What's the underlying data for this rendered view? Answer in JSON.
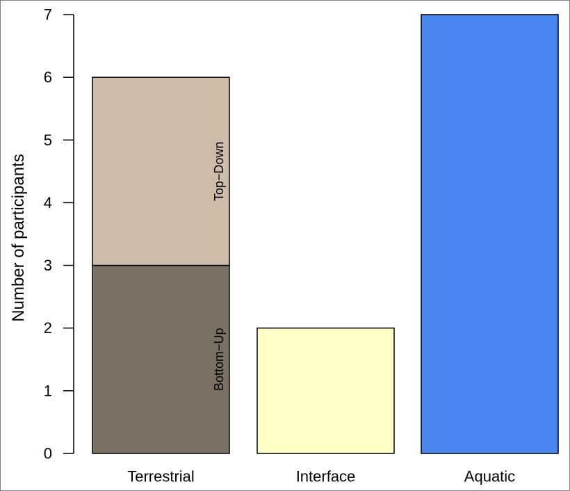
{
  "chart_data": {
    "type": "bar",
    "stacked": true,
    "categories": [
      "Terrestrial",
      "Interface",
      "Aquatic"
    ],
    "series": [
      {
        "name": "Bottom−Up",
        "values": [
          3,
          2,
          7
        ],
        "colors": [
          "#7a7063",
          "#ffffc8",
          "#4a86f0"
        ]
      },
      {
        "name": "Top−Down",
        "values": [
          3,
          0,
          0
        ],
        "colors": [
          "#ccbca9",
          "#ffffc8",
          "#4a86f0"
        ]
      }
    ],
    "segment_labels": [
      {
        "category": "Terrestrial",
        "series": "Bottom−Up",
        "text": "Bottom−Up"
      },
      {
        "category": "Terrestrial",
        "series": "Top−Down",
        "text": "Top−Down"
      }
    ],
    "title": "",
    "xlabel": "",
    "ylabel": "Number of participants",
    "ylim": [
      0,
      7
    ],
    "yticks": [
      0,
      1,
      2,
      3,
      4,
      5,
      6,
      7
    ],
    "grid": false,
    "legend": "none"
  }
}
